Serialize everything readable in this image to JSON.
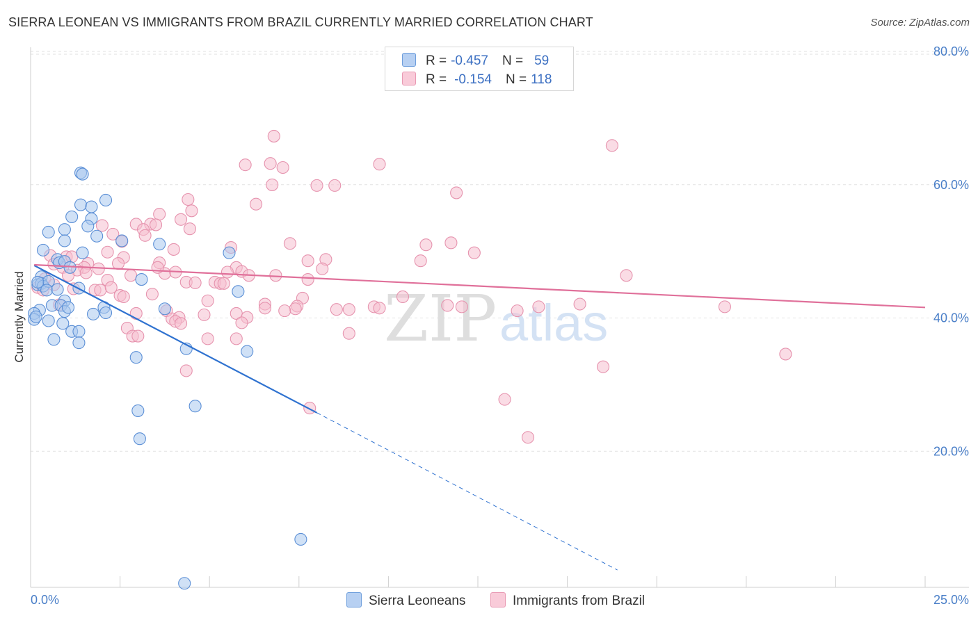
{
  "title": "SIERRA LEONEAN VS IMMIGRANTS FROM BRAZIL CURRENTLY MARRIED CORRELATION CHART",
  "source": "Source: ZipAtlas.com",
  "colors": {
    "blue_fill": "#a9c8ef",
    "blue_stroke": "#5b8fd6",
    "blue_line": "#2f72d0",
    "pink_fill": "#f6c0d0",
    "pink_stroke": "#e693ae",
    "pink_line": "#e0709a"
  },
  "legend": {
    "r_label": "R =",
    "n_label": "N =",
    "series": [
      {
        "r": "-0.457",
        "n": "59"
      },
      {
        "r": "-0.154",
        "n": "118"
      }
    ]
  },
  "watermark": {
    "zip": "ZIP",
    "atlas": "atlas"
  },
  "chart_data": {
    "type": "scatter",
    "title": "SIERRA LEONEAN VS IMMIGRANTS FROM BRAZIL CURRENTLY MARRIED CORRELATION CHART",
    "xlabel": "",
    "ylabel": "Currently Married",
    "xlim": [
      0,
      25
    ],
    "ylim": [
      0,
      80
    ],
    "x_tick_labels": [
      "0.0%",
      "25.0%"
    ],
    "y_ticks": [
      20,
      40,
      60,
      80
    ],
    "y_tick_labels": [
      "20.0%",
      "40.0%",
      "60.0%",
      "80.0%"
    ],
    "series": [
      {
        "name": "Sierra Leoneans",
        "r": -0.457,
        "n": 59,
        "trend": {
          "x0": 0.1,
          "y0": 48.3,
          "x1": 8.0,
          "y1": 26.2,
          "extend_to": 16.4,
          "extend_y": 2.6
        },
        "points": [
          [
            1.4,
            62.2
          ],
          [
            1.45,
            62.0
          ],
          [
            2.1,
            58.1
          ],
          [
            1.4,
            57.4
          ],
          [
            1.7,
            57.1
          ],
          [
            1.15,
            55.6
          ],
          [
            1.7,
            55.3
          ],
          [
            0.5,
            53.3
          ],
          [
            0.95,
            53.7
          ],
          [
            1.6,
            54.2
          ],
          [
            1.85,
            52.7
          ],
          [
            0.95,
            52.0
          ],
          [
            2.55,
            52.0
          ],
          [
            3.6,
            51.5
          ],
          [
            0.35,
            50.6
          ],
          [
            1.45,
            50.2
          ],
          [
            5.55,
            50.2
          ],
          [
            0.75,
            49.2
          ],
          [
            0.8,
            48.7
          ],
          [
            0.95,
            48.9
          ],
          [
            0.3,
            46.6
          ],
          [
            1.1,
            48.0
          ],
          [
            3.1,
            46.2
          ],
          [
            0.2,
            45.4
          ],
          [
            0.3,
            45.6
          ],
          [
            0.35,
            45.2
          ],
          [
            0.5,
            45.9
          ],
          [
            0.45,
            44.6
          ],
          [
            0.75,
            44.7
          ],
          [
            1.35,
            44.9
          ],
          [
            5.8,
            44.4
          ],
          [
            0.95,
            43.0
          ],
          [
            0.6,
            42.3
          ],
          [
            0.85,
            42.3
          ],
          [
            2.05,
            42.0
          ],
          [
            3.75,
            41.8
          ],
          [
            0.25,
            41.6
          ],
          [
            0.1,
            41.1
          ],
          [
            0.95,
            41.4
          ],
          [
            2.1,
            41.2
          ],
          [
            1.75,
            41.0
          ],
          [
            0.1,
            40.2
          ],
          [
            0.5,
            40.0
          ],
          [
            0.9,
            39.6
          ],
          [
            1.15,
            38.4
          ],
          [
            1.35,
            38.4
          ],
          [
            0.65,
            37.2
          ],
          [
            1.35,
            36.7
          ],
          [
            4.35,
            35.8
          ],
          [
            6.05,
            35.4
          ],
          [
            2.95,
            34.5
          ],
          [
            4.6,
            27.2
          ],
          [
            3.0,
            26.5
          ],
          [
            3.05,
            22.3
          ],
          [
            7.55,
            7.2
          ],
          [
            4.3,
            0.6
          ],
          [
            0.2,
            45.8
          ],
          [
            0.15,
            40.6
          ],
          [
            1.05,
            42.0
          ]
        ]
      },
      {
        "name": "Immigrants from Brazil",
        "r": -0.154,
        "n": 118,
        "trend": {
          "x0": 0.1,
          "y0": 48.4,
          "x1": 25.0,
          "y1": 42.0
        },
        "points": [
          [
            6.8,
            67.7
          ],
          [
            16.25,
            66.3
          ],
          [
            6.0,
            63.4
          ],
          [
            6.7,
            63.6
          ],
          [
            7.05,
            63.0
          ],
          [
            9.75,
            63.5
          ],
          [
            6.75,
            60.4
          ],
          [
            8.0,
            60.3
          ],
          [
            8.5,
            60.3
          ],
          [
            11.9,
            59.2
          ],
          [
            4.4,
            58.2
          ],
          [
            6.3,
            57.5
          ],
          [
            4.5,
            56.5
          ],
          [
            3.6,
            56.0
          ],
          [
            4.2,
            55.2
          ],
          [
            2.95,
            54.5
          ],
          [
            3.35,
            54.5
          ],
          [
            3.5,
            54.4
          ],
          [
            2.0,
            54.3
          ],
          [
            3.15,
            53.7
          ],
          [
            4.45,
            53.8
          ],
          [
            2.3,
            53.0
          ],
          [
            3.2,
            52.8
          ],
          [
            2.55,
            51.9
          ],
          [
            7.25,
            51.6
          ],
          [
            11.05,
            51.4
          ],
          [
            11.75,
            51.7
          ],
          [
            5.6,
            51.0
          ],
          [
            2.15,
            50.3
          ],
          [
            4.0,
            50.7
          ],
          [
            12.4,
            50.2
          ],
          [
            0.55,
            49.8
          ],
          [
            1.0,
            49.6
          ],
          [
            1.15,
            49.6
          ],
          [
            2.6,
            49.5
          ],
          [
            10.9,
            49.0
          ],
          [
            7.75,
            49.0
          ],
          [
            8.25,
            49.2
          ],
          [
            3.6,
            48.7
          ],
          [
            1.6,
            48.6
          ],
          [
            2.45,
            48.6
          ],
          [
            0.65,
            48.5
          ],
          [
            0.9,
            48.0
          ],
          [
            1.5,
            48.0
          ],
          [
            1.9,
            47.8
          ],
          [
            5.75,
            48.0
          ],
          [
            8.15,
            47.8
          ],
          [
            1.3,
            47.6
          ],
          [
            3.75,
            47.1
          ],
          [
            4.05,
            47.3
          ],
          [
            5.5,
            47.3
          ],
          [
            5.9,
            47.4
          ],
          [
            1.05,
            46.8
          ],
          [
            2.8,
            46.8
          ],
          [
            6.85,
            46.8
          ],
          [
            6.1,
            46.8
          ],
          [
            0.4,
            46.3
          ],
          [
            2.15,
            46.1
          ],
          [
            7.75,
            46.2
          ],
          [
            16.65,
            46.8
          ],
          [
            4.35,
            45.8
          ],
          [
            5.15,
            45.8
          ],
          [
            5.3,
            45.6
          ],
          [
            4.6,
            45.7
          ],
          [
            5.4,
            45.6
          ],
          [
            0.65,
            45.4
          ],
          [
            0.2,
            45.0
          ],
          [
            1.2,
            44.8
          ],
          [
            1.8,
            44.6
          ],
          [
            1.95,
            44.6
          ],
          [
            3.4,
            44.0
          ],
          [
            2.5,
            43.8
          ],
          [
            2.6,
            43.6
          ],
          [
            4.95,
            43.0
          ],
          [
            7.6,
            43.4
          ],
          [
            10.4,
            43.6
          ],
          [
            0.8,
            42.4
          ],
          [
            6.55,
            42.5
          ],
          [
            7.45,
            42.2
          ],
          [
            9.6,
            42.1
          ],
          [
            11.65,
            42.3
          ],
          [
            12.05,
            42.1
          ],
          [
            14.2,
            42.1
          ],
          [
            15.35,
            42.5
          ],
          [
            19.4,
            42.1
          ],
          [
            3.8,
            41.5
          ],
          [
            7.4,
            41.8
          ],
          [
            8.55,
            41.7
          ],
          [
            8.9,
            41.7
          ],
          [
            13.6,
            41.5
          ],
          [
            4.85,
            40.9
          ],
          [
            5.75,
            41.1
          ],
          [
            7.1,
            41.5
          ],
          [
            3.95,
            40.3
          ],
          [
            4.15,
            40.5
          ],
          [
            6.05,
            40.5
          ],
          [
            4.05,
            39.9
          ],
          [
            4.2,
            39.6
          ],
          [
            5.9,
            39.7
          ],
          [
            2.7,
            38.9
          ],
          [
            8.9,
            38.1
          ],
          [
            2.85,
            37.7
          ],
          [
            3.0,
            37.7
          ],
          [
            4.95,
            37.3
          ],
          [
            5.75,
            37.3
          ],
          [
            21.1,
            35.0
          ],
          [
            16.0,
            33.1
          ],
          [
            4.35,
            32.5
          ],
          [
            7.8,
            26.9
          ],
          [
            13.25,
            28.2
          ],
          [
            13.9,
            22.5
          ],
          [
            1.55,
            47.2
          ],
          [
            0.35,
            44.6
          ],
          [
            2.25,
            45.0
          ],
          [
            3.55,
            48.0
          ],
          [
            6.55,
            41.9
          ],
          [
            9.75,
            41.9
          ],
          [
            2.95,
            41.1
          ]
        ]
      }
    ]
  },
  "bottom_legend": {
    "items": [
      {
        "label": "Sierra Leoneans"
      },
      {
        "label": "Immigrants from Brazil"
      }
    ]
  }
}
